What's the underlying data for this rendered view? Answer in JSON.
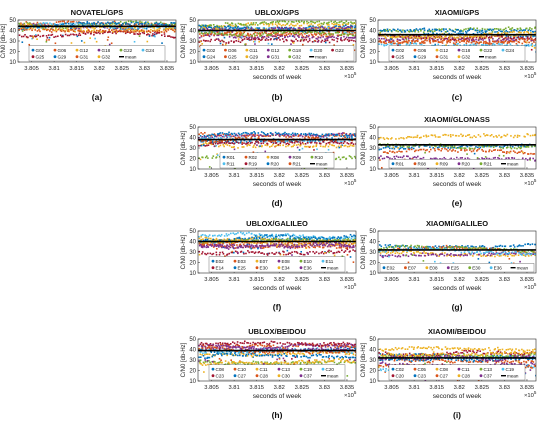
{
  "figure": {
    "panels": [
      {
        "id": "a",
        "title": "NOVATEL/GPS",
        "caption": "(a)",
        "show_ylabel": true,
        "show_xlabel": false,
        "show_exp": false,
        "legend_rows": [
          [
            "G02",
            "G06",
            "G12",
            "G18",
            "G22",
            "G24"
          ],
          [
            "G25",
            "G29",
            "G31",
            "G32",
            "mean"
          ]
        ]
      },
      {
        "id": "b",
        "title": "UBLOX/GPS",
        "caption": "(b)",
        "show_ylabel": true,
        "show_xlabel": true,
        "show_exp": true,
        "legend_rows": [
          [
            "G02",
            "G06",
            "G11",
            "G12",
            "G18",
            "G20",
            "G22"
          ],
          [
            "G24",
            "G25",
            "G29",
            "G31",
            "G32",
            "mean"
          ]
        ]
      },
      {
        "id": "c",
        "title": "XIAOMI/GPS",
        "caption": "(c)",
        "show_ylabel": true,
        "show_xlabel": true,
        "show_exp": true,
        "legend_rows": [
          [
            "G02",
            "G06",
            "G12",
            "G18",
            "G22",
            "G24"
          ],
          [
            "G25",
            "G29",
            "G31",
            "G32",
            "mean"
          ]
        ]
      },
      {
        "id": "d",
        "title": "UBLOX/GLONASS",
        "caption": "(d)",
        "show_ylabel": true,
        "show_xlabel": true,
        "show_exp": true,
        "legend_rows": [
          [
            "R01",
            "R02",
            "R08",
            "R09",
            "R10"
          ],
          [
            "R11",
            "R19",
            "R20",
            "R21",
            "mean"
          ]
        ]
      },
      {
        "id": "e",
        "title": "XIAOMI/GLONASS",
        "caption": "(e)",
        "show_ylabel": true,
        "show_xlabel": true,
        "show_exp": true,
        "legend_rows": [
          [
            "R01",
            "R08",
            "R09",
            "R20",
            "R21",
            "mean"
          ]
        ]
      },
      {
        "id": "f",
        "title": "UBLOX/GALILEO",
        "caption": "(f)",
        "show_ylabel": true,
        "show_xlabel": true,
        "show_exp": true,
        "legend_rows": [
          [
            "E02",
            "E03",
            "E07",
            "E08",
            "E10",
            "E11"
          ],
          [
            "E14",
            "E25",
            "E30",
            "E34",
            "E36",
            "mean"
          ]
        ]
      },
      {
        "id": "g",
        "title": "XIAOMI/GALILEO",
        "caption": "(g)",
        "show_ylabel": true,
        "show_xlabel": true,
        "show_exp": true,
        "legend_rows": [
          [
            "E02",
            "E07",
            "E08",
            "E25",
            "E30",
            "E36",
            "mean"
          ]
        ]
      },
      {
        "id": "h",
        "title": "UBLOX/BEIDOU",
        "caption": "(h)",
        "show_ylabel": true,
        "show_xlabel": true,
        "show_exp": true,
        "legend_rows": [
          [
            "C08",
            "C10",
            "C11",
            "C13",
            "C19",
            "C20"
          ],
          [
            "C23",
            "C27",
            "C28",
            "C30",
            "C37",
            "mean"
          ]
        ]
      },
      {
        "id": "i",
        "title": "XIAOMI/BEIDOU",
        "caption": "(i)",
        "show_ylabel": true,
        "show_xlabel": true,
        "show_exp": true,
        "legend_rows": [
          [
            "C02",
            "C05",
            "C08",
            "C11",
            "C13",
            "C19"
          ],
          [
            "C20",
            "C23",
            "C27",
            "C28",
            "C37",
            "mean"
          ]
        ]
      }
    ],
    "ylabel": "C/N0 [db-Hz]",
    "xlabel": "seconds of week",
    "exponent_label": "×10",
    "exponent_power": "5",
    "xticks": [
      "3.805",
      "3.81",
      "3.815",
      "3.82",
      "3.825",
      "3.83",
      "3.835"
    ],
    "yticks": [
      "10",
      "20",
      "30",
      "40",
      "50"
    ],
    "colors": {
      "series_palette": [
        "#0072bd",
        "#d95319",
        "#edb120",
        "#7e2f8e",
        "#77ac30",
        "#4dbeee",
        "#a2142f"
      ],
      "mean": "#000000",
      "axes": "#262626"
    }
  },
  "chart_data": [
    {
      "panel": "a",
      "type": "scatter",
      "title": "NOVATEL/GPS",
      "ylabel": "C/N0 [db-Hz]",
      "xlim": [
        380200,
        383700
      ],
      "ylim": [
        10,
        50
      ],
      "series": [
        {
          "name": "G02",
          "level": 42
        },
        {
          "name": "G06",
          "level": 46
        },
        {
          "name": "G12",
          "level": 43
        },
        {
          "name": "G18",
          "level": 45
        },
        {
          "name": "G22",
          "level": 47
        },
        {
          "name": "G24",
          "level": 44
        },
        {
          "name": "G25",
          "level": 36
        },
        {
          "name": "G29",
          "level": 45
        },
        {
          "name": "G31",
          "level": 43
        },
        {
          "name": "G32",
          "level": 46
        },
        {
          "name": "mean",
          "level": 44
        }
      ]
    },
    {
      "panel": "b",
      "type": "scatter",
      "title": "UBLOX/GPS",
      "xlabel": "seconds of week",
      "ylabel": "C/N0 [db-Hz]",
      "xlim": [
        380200,
        383700
      ],
      "ylim": [
        10,
        50
      ],
      "series": [
        {
          "name": "G02",
          "level": 42
        },
        {
          "name": "G06",
          "level": 38
        },
        {
          "name": "G11",
          "level": 44
        },
        {
          "name": "G12",
          "level": 35
        },
        {
          "name": "G18",
          "level": 46
        },
        {
          "name": "G20",
          "level": 40
        },
        {
          "name": "G22",
          "level": 30
        },
        {
          "name": "G24",
          "level": 45
        },
        {
          "name": "G25",
          "level": 36
        },
        {
          "name": "G29",
          "level": 43
        },
        {
          "name": "G31",
          "level": 41
        },
        {
          "name": "G32",
          "level": 39
        },
        {
          "name": "mean",
          "level": 40
        }
      ]
    },
    {
      "panel": "c",
      "type": "scatter",
      "title": "XIAOMI/GPS",
      "xlabel": "seconds of week",
      "ylabel": "C/N0 [db-Hz]",
      "xlim": [
        380200,
        383700
      ],
      "ylim": [
        10,
        50
      ],
      "series": [
        {
          "name": "G02",
          "level": 38
        },
        {
          "name": "G06",
          "level": 30
        },
        {
          "name": "G12",
          "level": 36
        },
        {
          "name": "G18",
          "level": 33
        },
        {
          "name": "G22",
          "level": 40
        },
        {
          "name": "G24",
          "level": 26
        },
        {
          "name": "G25",
          "level": 35
        },
        {
          "name": "G29",
          "level": 41
        },
        {
          "name": "G31",
          "level": 31
        },
        {
          "name": "G32",
          "level": 37
        },
        {
          "name": "mean",
          "level": 36
        }
      ]
    },
    {
      "panel": "d",
      "type": "scatter",
      "title": "UBLOX/GLONASS",
      "xlabel": "seconds of week",
      "ylabel": "C/N0 [db-Hz]",
      "xlim": [
        380200,
        383700
      ],
      "ylim": [
        10,
        50
      ],
      "series": [
        {
          "name": "R01",
          "level": 38
        },
        {
          "name": "R02",
          "level": 44
        },
        {
          "name": "R08",
          "level": 35
        },
        {
          "name": "R09",
          "level": 41
        },
        {
          "name": "R10",
          "level": 22
        },
        {
          "name": "R11",
          "level": 40
        },
        {
          "name": "R19",
          "level": 33
        },
        {
          "name": "R20",
          "level": 42
        },
        {
          "name": "R21",
          "level": 37
        },
        {
          "name": "mean",
          "level": 38
        }
      ]
    },
    {
      "panel": "e",
      "type": "scatter",
      "title": "XIAOMI/GLONASS",
      "xlabel": "seconds of week",
      "ylabel": "C/N0 [db-Hz]",
      "xlim": [
        380200,
        383700
      ],
      "ylim": [
        10,
        50
      ],
      "series": [
        {
          "name": "R01",
          "level": 30
        },
        {
          "name": "R08",
          "level": 26
        },
        {
          "name": "R09",
          "level": 40
        },
        {
          "name": "R20",
          "level": 22
        },
        {
          "name": "R21",
          "level": 34
        },
        {
          "name": "mean",
          "level": 33
        }
      ]
    },
    {
      "panel": "f",
      "type": "scatter",
      "title": "UBLOX/GALILEO",
      "xlabel": "seconds of week",
      "ylabel": "C/N0 [db-Hz]",
      "xlim": [
        380200,
        383700
      ],
      "ylim": [
        10,
        50
      ],
      "series": [
        {
          "name": "E02",
          "level": 42
        },
        {
          "name": "E03",
          "level": 38
        },
        {
          "name": "E07",
          "level": 44
        },
        {
          "name": "E08",
          "level": 36
        },
        {
          "name": "E10",
          "level": 40
        },
        {
          "name": "E11",
          "level": 46
        },
        {
          "name": "E14",
          "level": 30
        },
        {
          "name": "E25",
          "level": 43
        },
        {
          "name": "E30",
          "level": 39
        },
        {
          "name": "E34",
          "level": 41
        },
        {
          "name": "E36",
          "level": 37
        },
        {
          "name": "mean",
          "level": 40
        }
      ]
    },
    {
      "panel": "g",
      "type": "scatter",
      "title": "XIAOMI/GALILEO",
      "xlabel": "seconds of week",
      "ylabel": "C/N0 [db-Hz]",
      "xlim": [
        380200,
        383700
      ],
      "ylim": [
        10,
        50
      ],
      "series": [
        {
          "name": "E02",
          "level": 36
        },
        {
          "name": "E07",
          "level": 33
        },
        {
          "name": "E08",
          "level": 30
        },
        {
          "name": "E25",
          "level": 27
        },
        {
          "name": "E30",
          "level": 34
        },
        {
          "name": "E36",
          "level": 31
        },
        {
          "name": "mean",
          "level": 32
        }
      ]
    },
    {
      "panel": "h",
      "type": "scatter",
      "title": "UBLOX/BEIDOU",
      "xlabel": "seconds of week",
      "ylabel": "C/N0 [db-Hz]",
      "xlim": [
        380200,
        383700
      ],
      "ylim": [
        10,
        50
      ],
      "series": [
        {
          "name": "C08",
          "level": 40
        },
        {
          "name": "C10",
          "level": 44
        },
        {
          "name": "C11",
          "level": 36
        },
        {
          "name": "C13",
          "level": 42
        },
        {
          "name": "C19",
          "level": 30
        },
        {
          "name": "C20",
          "level": 38
        },
        {
          "name": "C23",
          "level": 46
        },
        {
          "name": "C27",
          "level": 34
        },
        {
          "name": "C28",
          "level": 41
        },
        {
          "name": "C30",
          "level": 28
        },
        {
          "name": "C37",
          "level": 43
        },
        {
          "name": "mean",
          "level": 39
        }
      ]
    },
    {
      "panel": "i",
      "type": "scatter",
      "title": "XIAOMI/BEIDOU",
      "xlabel": "seconds of week",
      "ylabel": "C/N0 [db-Hz]",
      "xlim": [
        380200,
        383700
      ],
      "ylim": [
        10,
        50
      ],
      "series": [
        {
          "name": "C02",
          "level": 36
        },
        {
          "name": "C05",
          "level": 32
        },
        {
          "name": "C08",
          "level": 40
        },
        {
          "name": "C11",
          "level": 28
        },
        {
          "name": "C13",
          "level": 34
        },
        {
          "name": "C19",
          "level": 22
        },
        {
          "name": "C20",
          "level": 38
        },
        {
          "name": "C23",
          "level": 30
        },
        {
          "name": "C27",
          "level": 25
        },
        {
          "name": "C28",
          "level": 35
        },
        {
          "name": "C37",
          "level": 33
        },
        {
          "name": "mean",
          "level": 32
        }
      ]
    }
  ]
}
